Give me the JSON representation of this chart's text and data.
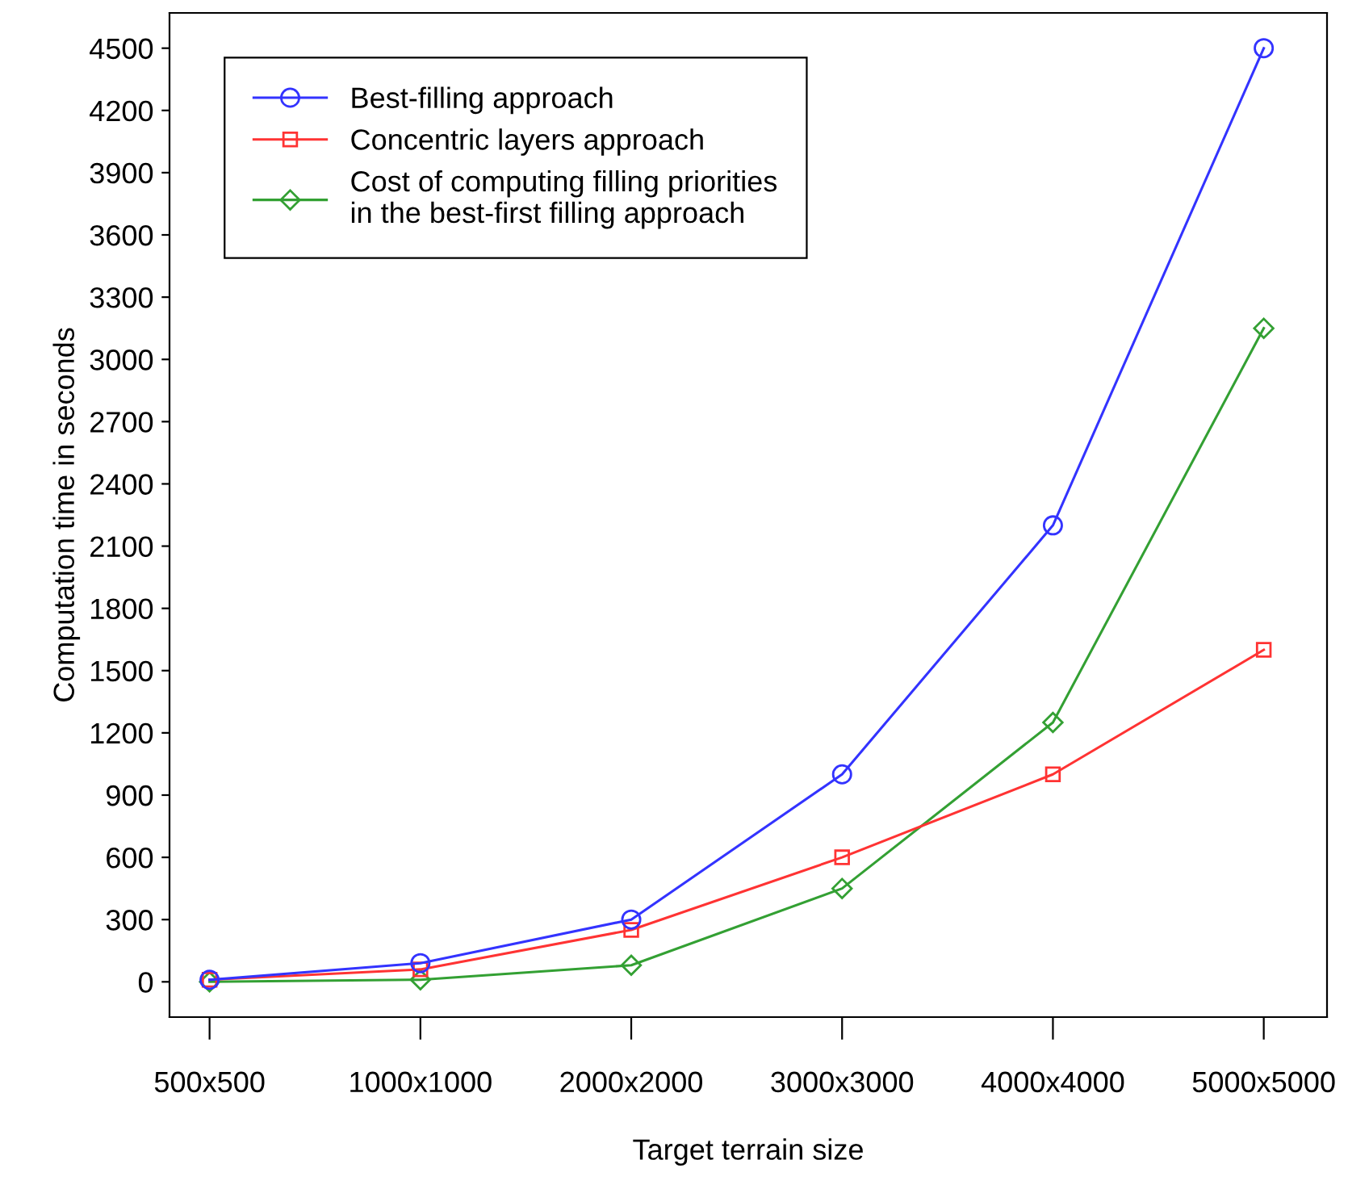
{
  "chart_data": {
    "type": "line",
    "xlabel": "Target terrain size",
    "ylabel": "Computation time in seconds",
    "categories": [
      "500x500",
      "1000x1000",
      "2000x2000",
      "3000x3000",
      "4000x4000",
      "5000x5000"
    ],
    "series": [
      {
        "name": "Best-filling approach",
        "color": "#3333ff",
        "marker": "circle",
        "values": [
          10,
          90,
          300,
          1000,
          2200,
          4500
        ]
      },
      {
        "name": "Concentric layers approach",
        "color": "#ff3333",
        "marker": "square",
        "values": [
          10,
          60,
          250,
          600,
          1000,
          1600
        ]
      },
      {
        "name": "Cost of computing filling priorities\nin the best-first filling approach",
        "color": "#33a033",
        "marker": "diamond",
        "values": [
          0,
          10,
          80,
          450,
          1250,
          3150
        ]
      }
    ],
    "ylim": [
      -170,
      4670
    ],
    "yticks": [
      0,
      300,
      600,
      900,
      1200,
      1500,
      1800,
      2100,
      2400,
      2700,
      3000,
      3300,
      3600,
      3900,
      4200,
      4500
    ],
    "grid": false,
    "legend": "top left",
    "line_style": "solid"
  }
}
